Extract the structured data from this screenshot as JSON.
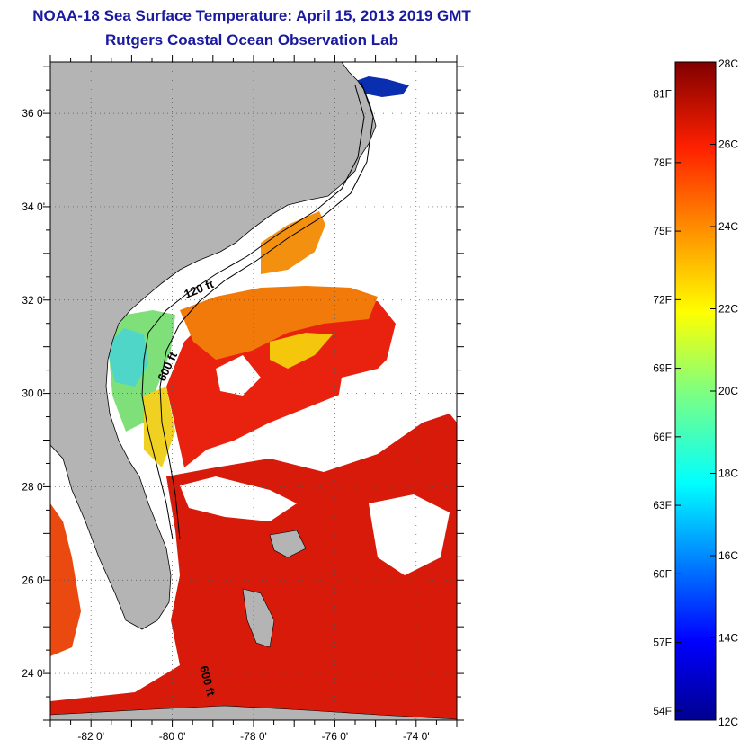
{
  "title": {
    "line1": "NOAA-18 Sea Surface Temperature:  April 15, 2013 2019 GMT",
    "line2": "Rutgers Coastal Ocean Observation Lab"
  },
  "map": {
    "lat_labels": [
      {
        "lat": 36,
        "label": "36 0'"
      },
      {
        "lat": 34,
        "label": "34 0'"
      },
      {
        "lat": 32,
        "label": "32 0'"
      },
      {
        "lat": 30,
        "label": "30 0'"
      },
      {
        "lat": 28,
        "label": "28 0'"
      },
      {
        "lat": 26,
        "label": "26 0'"
      },
      {
        "lat": 24,
        "label": "24 0'"
      }
    ],
    "lon_labels": [
      {
        "lon": -82,
        "label": "-82 0'"
      },
      {
        "lon": -80,
        "label": "-80 0'"
      },
      {
        "lon": -78,
        "label": "-78 0'"
      },
      {
        "lon": -76,
        "label": "-76 0'"
      },
      {
        "lon": -74,
        "label": "-74 0'"
      }
    ],
    "lat_range": [
      23,
      37.1
    ],
    "lon_range": [
      -83,
      -73
    ],
    "contour_labels": [
      "120 ft",
      "600 ft",
      "600 ft"
    ],
    "colors": {
      "land": "#b4b4b4",
      "cloud": "#ffffff",
      "warm": "#e8220f",
      "ocean_hot": "#d41208"
    }
  },
  "colorbar": {
    "celsius_range": [
      12,
      28
    ],
    "celsius_labels": [
      "28C",
      "26C",
      "24C",
      "22C",
      "20C",
      "18C",
      "16C",
      "14C",
      "12C"
    ],
    "fahrenheit_labels": [
      {
        "f": 81,
        "label": "81F"
      },
      {
        "f": 78,
        "label": "78F"
      },
      {
        "f": 75,
        "label": "75F"
      },
      {
        "f": 72,
        "label": "72F"
      },
      {
        "f": 69,
        "label": "69F"
      },
      {
        "f": 66,
        "label": "66F"
      },
      {
        "f": 63,
        "label": "63F"
      },
      {
        "f": 60,
        "label": "60F"
      },
      {
        "f": 57,
        "label": "57F"
      },
      {
        "f": 54,
        "label": "54F"
      }
    ]
  }
}
